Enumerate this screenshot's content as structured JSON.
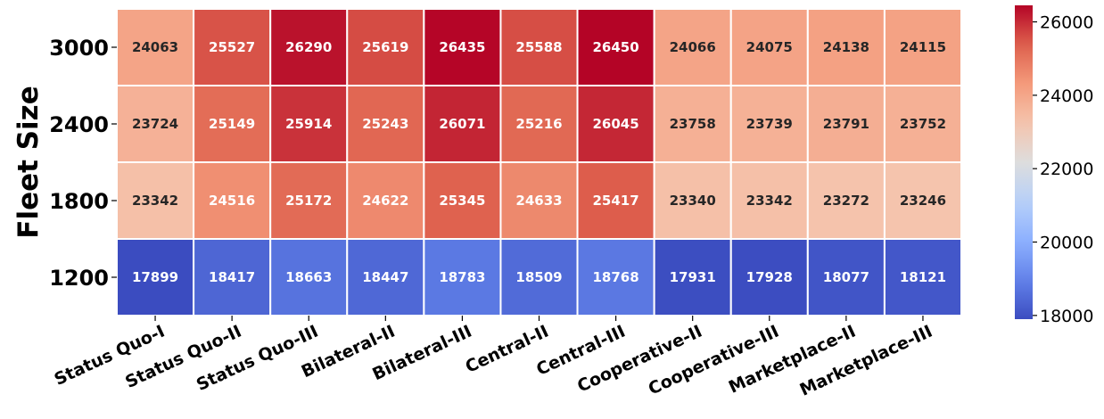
{
  "chart_data": {
    "type": "heatmap",
    "title": "",
    "xlabel": "",
    "ylabel": "Fleet Size",
    "x_categories": [
      "Status Quo-I",
      "Status Quo-II",
      "Status Quo-III",
      "Bilateral-II",
      "Bilateral-III",
      "Central-II",
      "Central-III",
      "Cooperative-II",
      "Cooperative-III",
      "Marketplace-II",
      "Marketplace-III"
    ],
    "y_categories": [
      "3000",
      "2400",
      "1800",
      "1200"
    ],
    "values": [
      [
        24063,
        25527,
        26290,
        25619,
        26435,
        25588,
        26450,
        24066,
        24075,
        24138,
        24115
      ],
      [
        23724,
        25149,
        25914,
        25243,
        26071,
        25216,
        26045,
        23758,
        23739,
        23791,
        23752
      ],
      [
        23342,
        24516,
        25172,
        24622,
        25345,
        24633,
        25417,
        23340,
        23342,
        23272,
        23246
      ],
      [
        17899,
        18417,
        18663,
        18447,
        18783,
        18509,
        18768,
        17931,
        17928,
        18077,
        18121
      ]
    ],
    "annotations": true,
    "colormap": "coolwarm",
    "vmin": 17899,
    "vmax": 26450,
    "colorbar_ticks": [
      "18000",
      "20000",
      "22000",
      "24000",
      "26000"
    ],
    "colorbar_position": "right"
  }
}
